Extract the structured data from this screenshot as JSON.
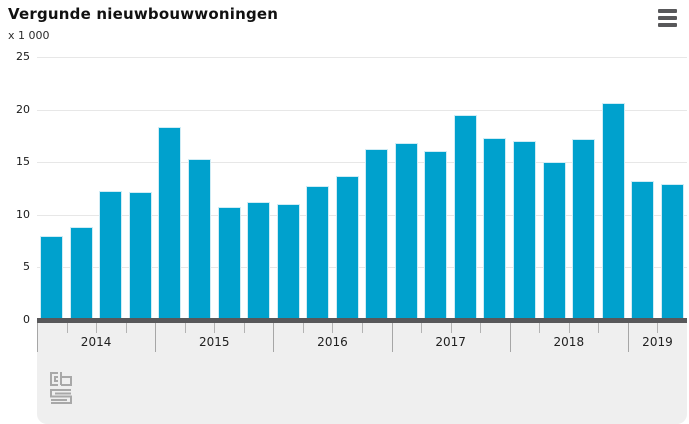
{
  "header": {
    "title": "Vergunde nieuwbouwwoningen",
    "unit_label": "x 1 000",
    "menu_icon": "hamburger-menu-icon"
  },
  "footer": {
    "logo": "cbs-logo"
  },
  "colors": {
    "bar": "#00a1cd",
    "bar_edge": "#cfecf5",
    "axis_strip": "#58585a",
    "panel_background": "#efefef",
    "gridline": "#e7e7e7"
  },
  "chart_data": {
    "type": "bar",
    "title": "Vergunde nieuwbouwwoningen",
    "unit": "x 1 000",
    "series_name": "Vergunde nieuwbouwwoningen per kwartaal (x 1 000)",
    "ylim": [
      0,
      25
    ],
    "y_ticks": [
      0,
      5,
      10,
      15,
      20,
      25
    ],
    "grid": true,
    "legend": "none",
    "x_axis": "quarters grouped per year, only year labels shown",
    "groups": [
      {
        "year": "2014",
        "values": [
          8.0,
          8.8,
          12.3,
          12.2
        ]
      },
      {
        "year": "2015",
        "values": [
          18.3,
          15.3,
          10.7,
          11.2
        ]
      },
      {
        "year": "2016",
        "values": [
          11.0,
          12.7,
          13.7,
          16.3
        ]
      },
      {
        "year": "2017",
        "values": [
          16.8,
          16.1,
          19.5,
          17.3
        ]
      },
      {
        "year": "2018",
        "values": [
          17.0,
          15.0,
          17.2,
          20.6
        ]
      },
      {
        "year": "2019",
        "values": [
          13.2,
          12.9
        ]
      }
    ]
  }
}
